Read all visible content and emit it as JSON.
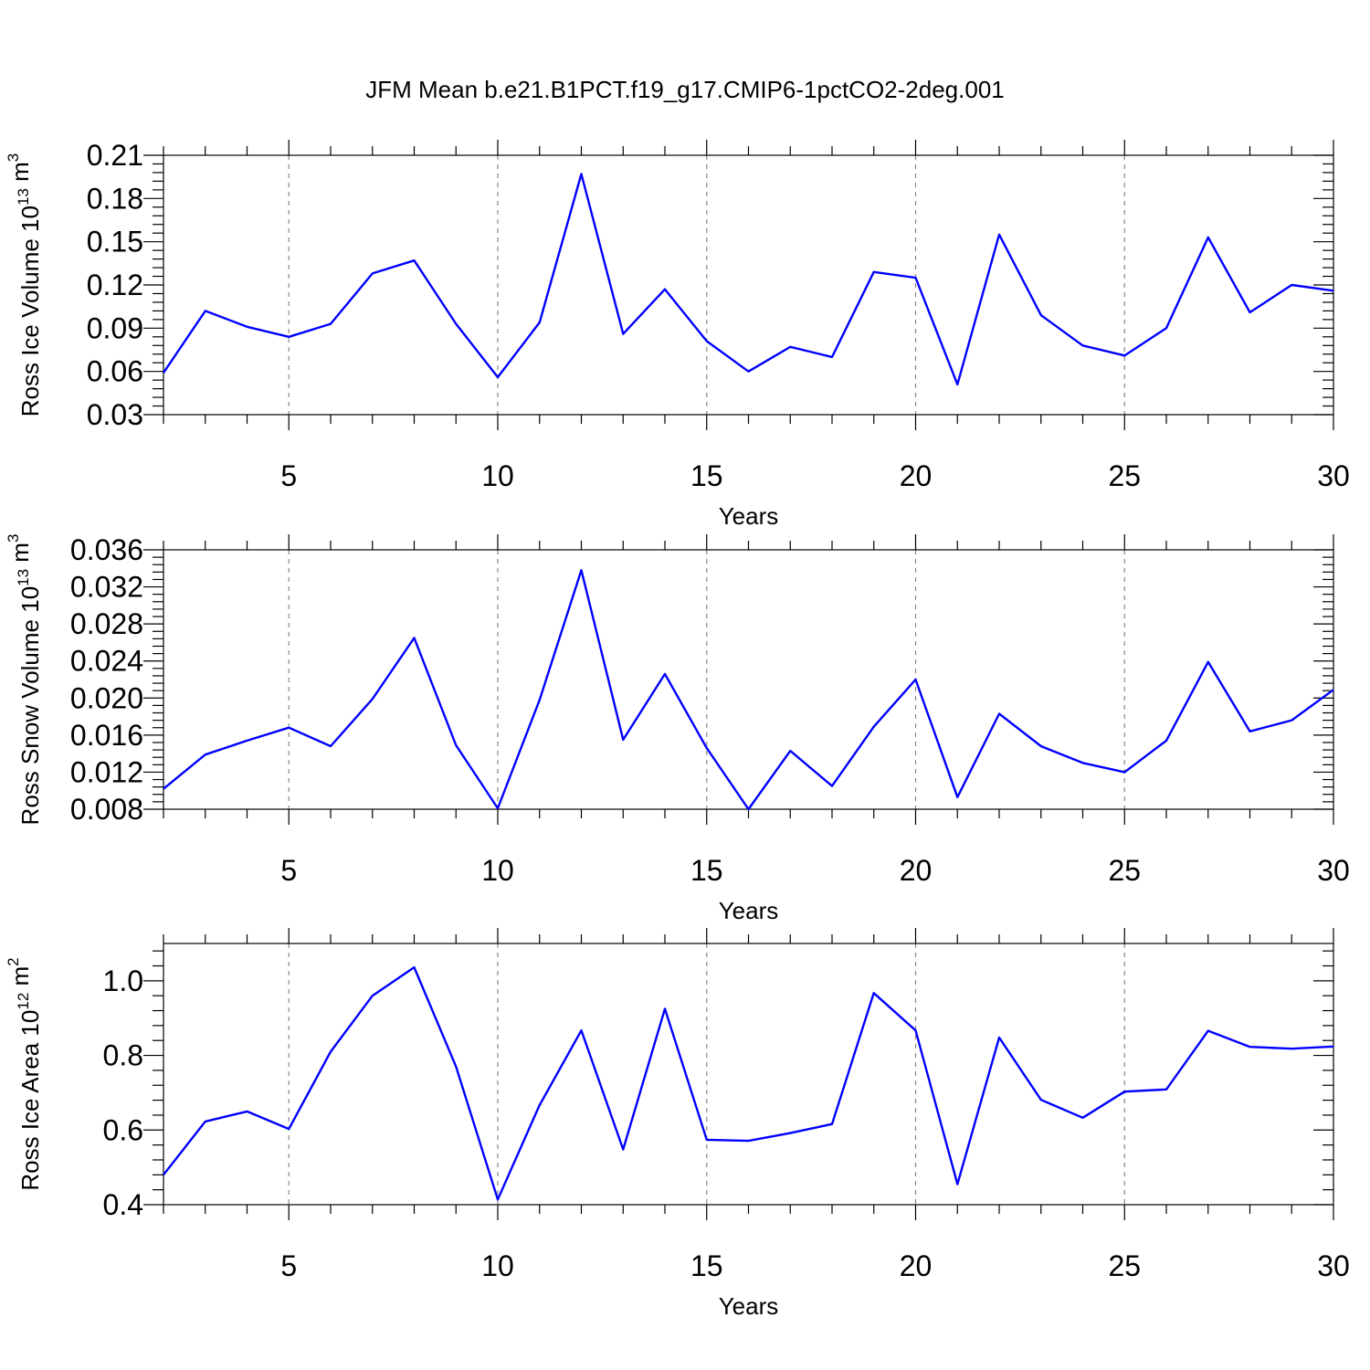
{
  "title": "JFM Mean b.e21.B1PCT.f19_g17.CMIP6-1pctCO2-2deg.001",
  "colors": {
    "series": "#0000ff",
    "grid": "#888888",
    "axes": "#000000"
  },
  "chart_data": [
    {
      "type": "line",
      "xlabel": "Years",
      "ylabel": {
        "main": "Ross Ice Volume 10",
        "exp": "13",
        "unit": " m",
        "unit_exp": "3"
      },
      "xlim": [
        2,
        30
      ],
      "ylim": [
        0.03,
        0.21
      ],
      "xticks": [
        5,
        10,
        15,
        20,
        25,
        30
      ],
      "xtick_labels": [
        "5",
        "10",
        "15",
        "20",
        "25",
        "30"
      ],
      "yticks": [
        0.03,
        0.06,
        0.09,
        0.12,
        0.15,
        0.18,
        0.21
      ],
      "ytick_labels": [
        "0.03",
        "0.06",
        "0.09",
        "0.12",
        "0.15",
        "0.18",
        "0.21"
      ],
      "grid": "vertical dashed at major x ticks",
      "x": [
        2,
        3,
        4,
        5,
        6,
        7,
        8,
        9,
        10,
        11,
        12,
        13,
        14,
        15,
        16,
        17,
        18,
        19,
        20,
        21,
        22,
        23,
        24,
        25,
        26,
        27,
        28,
        29,
        30
      ],
      "series": [
        {
          "values": [
            0.059,
            0.102,
            0.091,
            0.084,
            0.093,
            0.128,
            0.137,
            0.093,
            0.056,
            0.094,
            0.197,
            0.086,
            0.117,
            0.081,
            0.06,
            0.077,
            0.07,
            0.129,
            0.125,
            0.051,
            0.155,
            0.099,
            0.078,
            0.071,
            0.09,
            0.153,
            0.101,
            0.12,
            0.116
          ]
        }
      ]
    },
    {
      "type": "line",
      "xlabel": "Years",
      "ylabel": {
        "main": "Ross Snow Volume 10",
        "exp": "13",
        "unit": " m",
        "unit_exp": "3"
      },
      "xlim": [
        2,
        30
      ],
      "ylim": [
        0.008,
        0.036
      ],
      "xticks": [
        5,
        10,
        15,
        20,
        25,
        30
      ],
      "xtick_labels": [
        "5",
        "10",
        "15",
        "20",
        "25",
        "30"
      ],
      "yticks": [
        0.008,
        0.012,
        0.016,
        0.02,
        0.024,
        0.028,
        0.032,
        0.036
      ],
      "ytick_labels": [
        "0.008",
        "0.012",
        "0.016",
        "0.020",
        "0.024",
        "0.028",
        "0.032",
        "0.036"
      ],
      "grid": "vertical dashed at major x ticks",
      "x": [
        2,
        3,
        4,
        5,
        6,
        7,
        8,
        9,
        10,
        11,
        12,
        13,
        14,
        15,
        16,
        17,
        18,
        19,
        20,
        21,
        22,
        23,
        24,
        25,
        26,
        27,
        28,
        29,
        30
      ],
      "series": [
        {
          "values": [
            0.0102,
            0.0139,
            0.0154,
            0.0168,
            0.0148,
            0.0199,
            0.0265,
            0.0149,
            0.0081,
            0.0198,
            0.0338,
            0.0155,
            0.0226,
            0.0146,
            0.008,
            0.0143,
            0.0105,
            0.0169,
            0.022,
            0.0093,
            0.0183,
            0.0148,
            0.013,
            0.012,
            0.0154,
            0.0239,
            0.0164,
            0.0176,
            0.0209
          ]
        }
      ]
    },
    {
      "type": "line",
      "xlabel": "Years",
      "ylabel": {
        "main": "Ross Ice Area 10",
        "exp": "12",
        "unit": " m",
        "unit_exp": "2"
      },
      "xlim": [
        2,
        30
      ],
      "ylim": [
        0.4,
        1.1
      ],
      "xticks": [
        5,
        10,
        15,
        20,
        25,
        30
      ],
      "xtick_labels": [
        "5",
        "10",
        "15",
        "20",
        "25",
        "30"
      ],
      "yticks": [
        0.4,
        0.6,
        0.8,
        1.0
      ],
      "ytick_labels": [
        "0.4",
        "0.6",
        "0.8",
        "1.0"
      ],
      "grid": "vertical dashed at major x ticks",
      "x": [
        2,
        3,
        4,
        5,
        6,
        7,
        8,
        9,
        10,
        11,
        12,
        13,
        14,
        15,
        16,
        17,
        18,
        19,
        20,
        21,
        22,
        23,
        24,
        25,
        26,
        27,
        28,
        29,
        30
      ],
      "series": [
        {
          "values": [
            0.48,
            0.623,
            0.65,
            0.603,
            0.81,
            0.96,
            1.036,
            0.77,
            0.414,
            0.667,
            0.867,
            0.548,
            0.925,
            0.574,
            0.571,
            0.592,
            0.616,
            0.967,
            0.867,
            0.455,
            0.848,
            0.681,
            0.633,
            0.703,
            0.709,
            0.866,
            0.823,
            0.818,
            0.824
          ]
        }
      ]
    }
  ]
}
